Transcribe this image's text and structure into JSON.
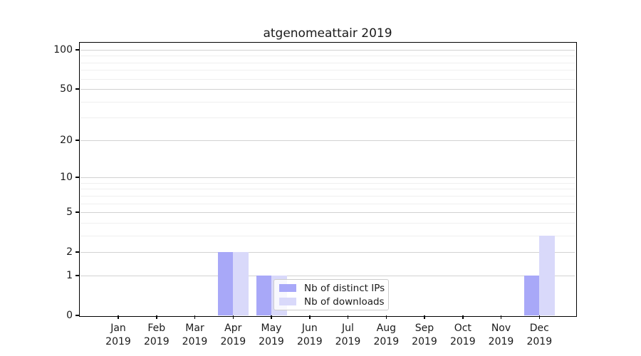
{
  "chart_data": {
    "type": "bar",
    "title": "atgenomeattair 2019",
    "categories": [
      "Jan\n2019",
      "Feb\n2019",
      "Mar\n2019",
      "Apr\n2019",
      "May\n2019",
      "Jun\n2019",
      "Jul\n2019",
      "Aug\n2019",
      "Sep\n2019",
      "Oct\n2019",
      "Nov\n2019",
      "Dec\n2019"
    ],
    "series": [
      {
        "name": "Nb of distinct IPs",
        "color": "#a8a8f8",
        "values": [
          0,
          0,
          0,
          2,
          1,
          0,
          0,
          0,
          0,
          0,
          0,
          1
        ]
      },
      {
        "name": "Nb of downloads",
        "color": "#d9d9fa",
        "values": [
          0,
          0,
          0,
          2,
          1,
          0,
          0,
          0,
          0,
          0,
          0,
          3
        ]
      }
    ],
    "xlabel": "",
    "ylabel": "",
    "yscale": "log1p",
    "ylim": [
      0,
      113
    ],
    "yticks": [
      0,
      1,
      2,
      5,
      10,
      20,
      50,
      100
    ],
    "minor_gridlines": [
      3,
      4,
      6,
      7,
      8,
      9,
      30,
      40,
      60,
      70,
      80,
      90
    ],
    "grid": true,
    "legend_position": "lower center",
    "colors": {
      "major_grid": "#d2d2d2",
      "minor_grid": "#efefef",
      "axis": "#000000",
      "text": "#1a1a1a",
      "legend_border": "#cccccc",
      "background": "#ffffff"
    }
  }
}
